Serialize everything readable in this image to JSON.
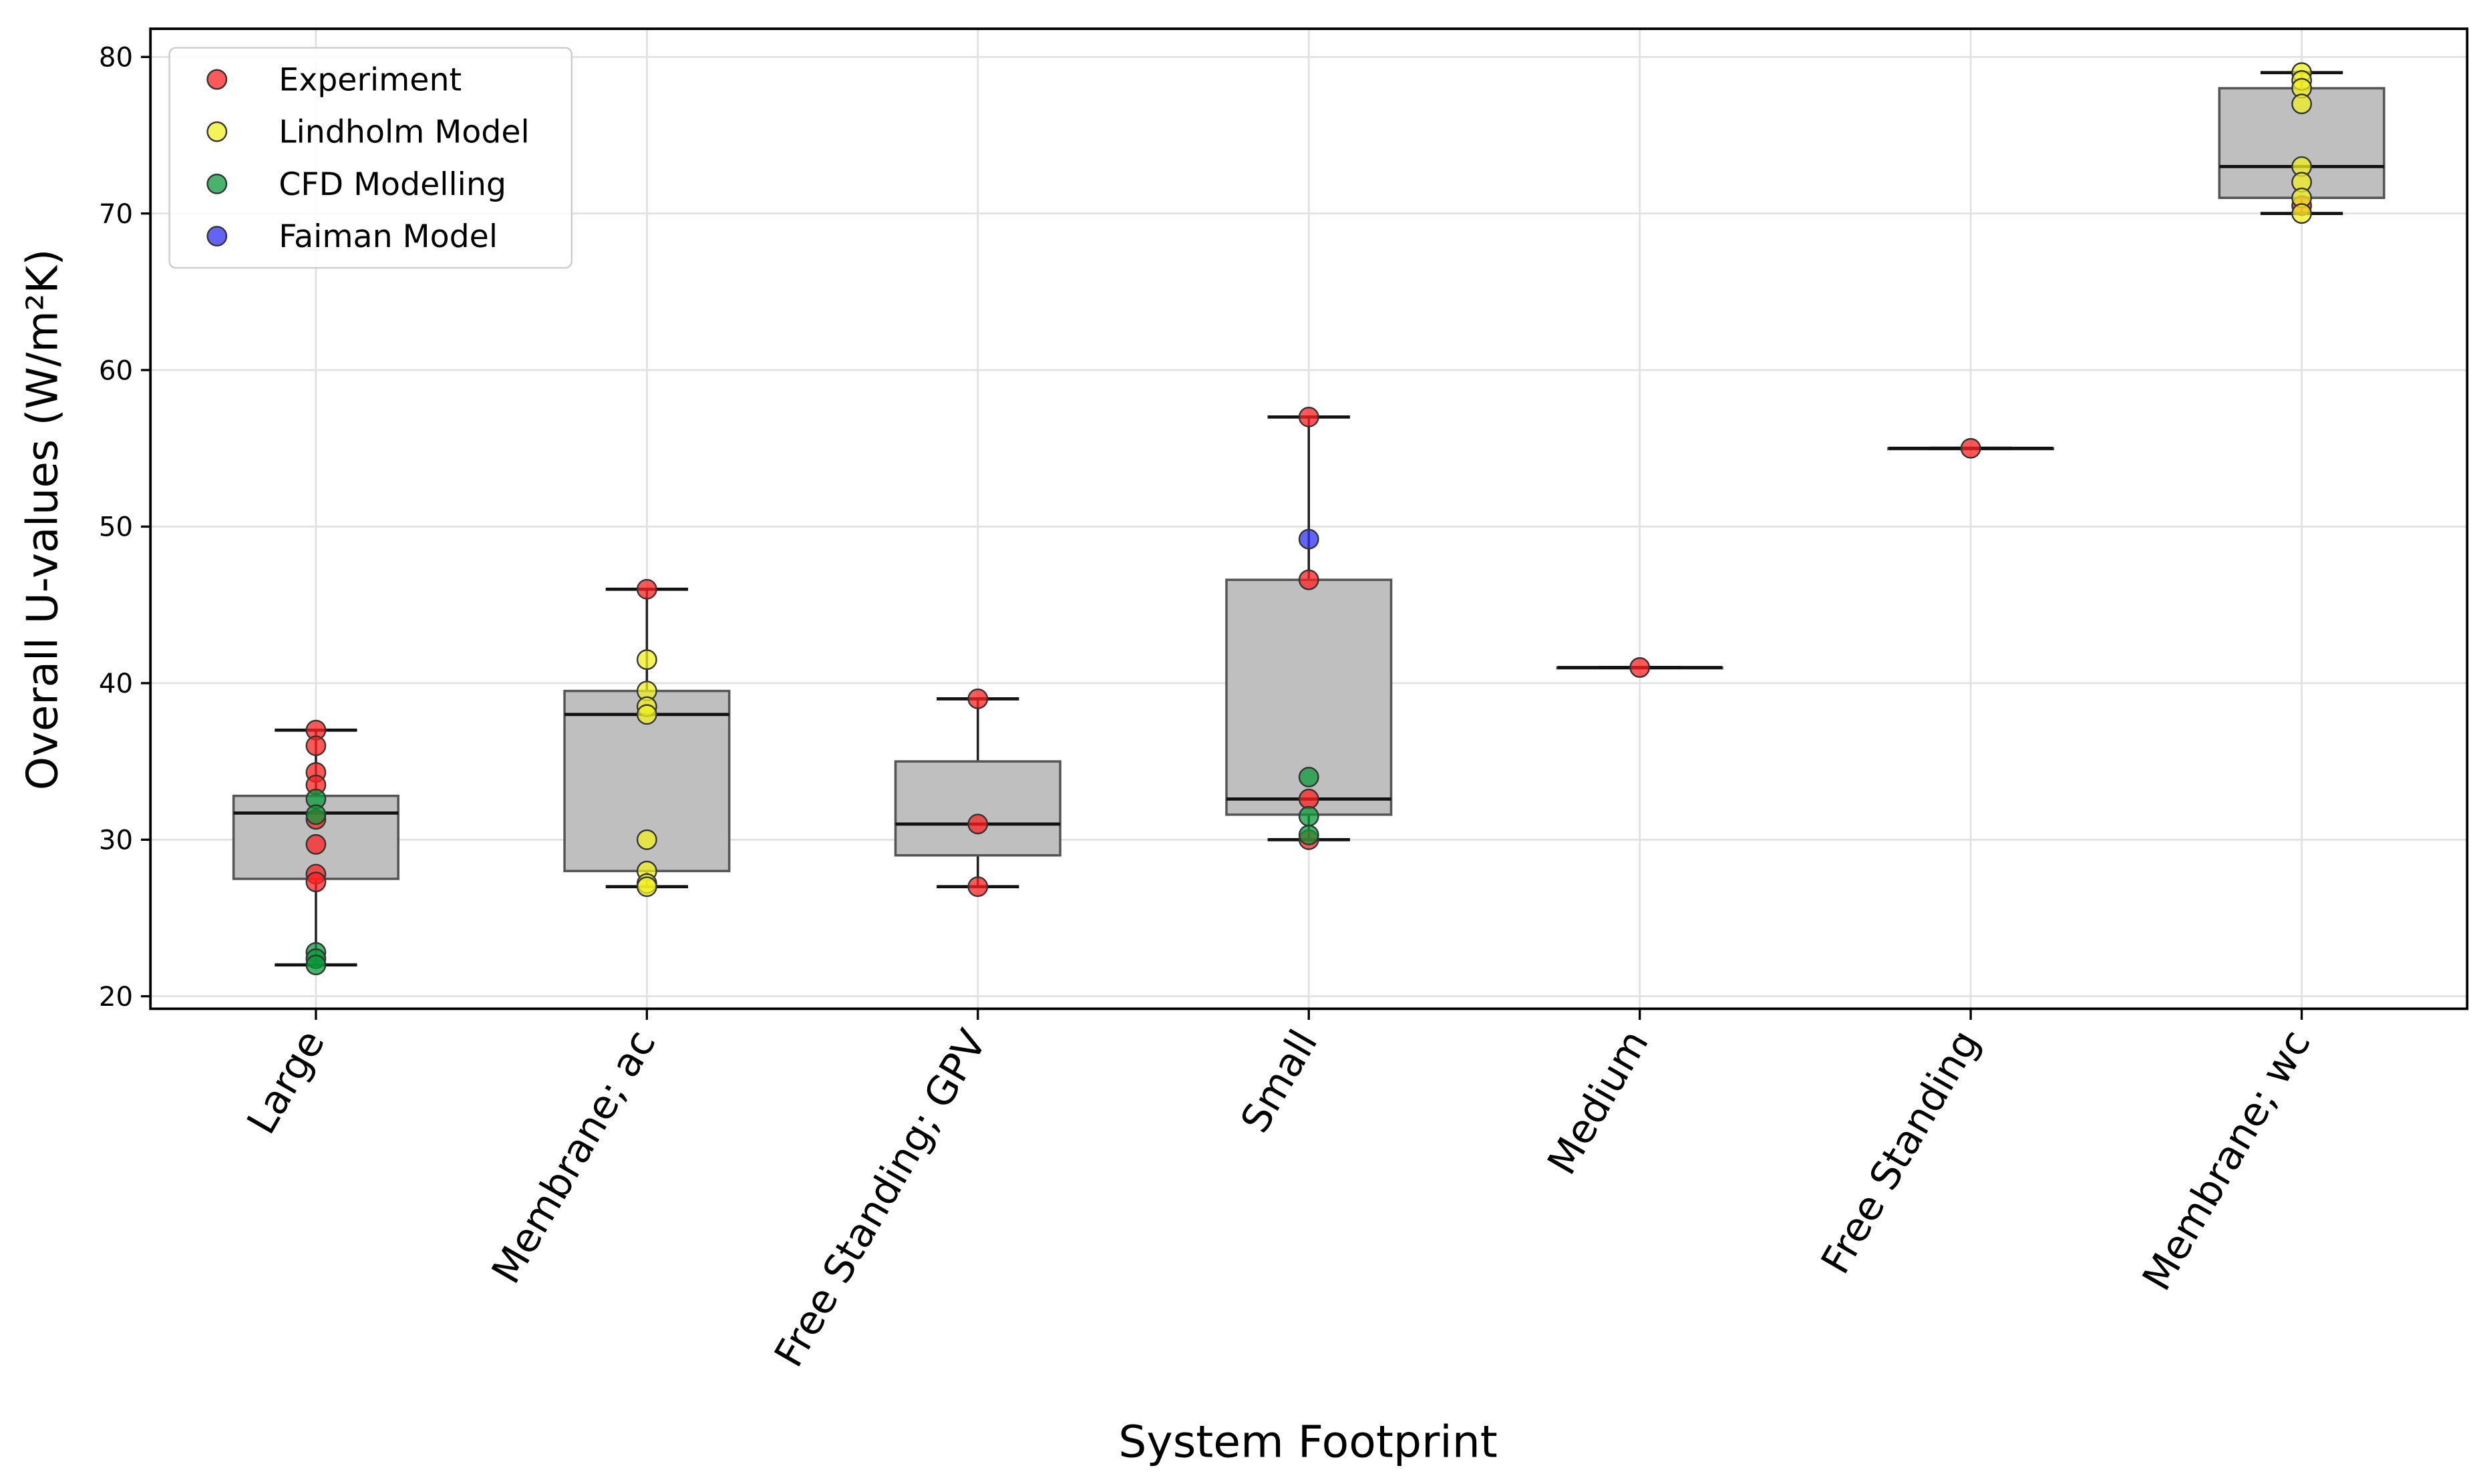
{
  "chart_data": {
    "type": "box",
    "title": "",
    "xlabel": "System Footprint",
    "ylabel": "Overall U-values (W/m²K)",
    "ylim": [
      19.2,
      81.8
    ],
    "yticks": [
      20,
      30,
      40,
      50,
      60,
      70,
      80
    ],
    "grid": true,
    "legend_position": "top-left",
    "categories": [
      "Large",
      "Membrane; ac",
      "Free Standing; GPV",
      "Small",
      "Medium",
      "Free Standing",
      "Membrane; wc"
    ],
    "boxes": [
      {
        "q1": 27.5,
        "median": 31.7,
        "q3": 32.8,
        "whisker_low": 22,
        "whisker_high": 37
      },
      {
        "q1": 28,
        "median": 38,
        "q3": 39.5,
        "whisker_low": 27,
        "whisker_high": 46
      },
      {
        "q1": 29,
        "median": 31,
        "q3": 35,
        "whisker_low": 27,
        "whisker_high": 39
      },
      {
        "q1": 31.6,
        "median": 32.6,
        "q3": 46.6,
        "whisker_low": 30,
        "whisker_high": 57
      },
      {
        "q1": 41,
        "median": 41,
        "q3": 41,
        "whisker_low": 41,
        "whisker_high": 41
      },
      {
        "q1": 55,
        "median": 55,
        "q3": 55,
        "whisker_low": 55,
        "whisker_high": 55
      },
      {
        "q1": 71,
        "median": 73,
        "q3": 78,
        "whisker_low": 70,
        "whisker_high": 79
      }
    ],
    "series": [
      {
        "name": "Experiment",
        "color": "#ff2020",
        "points": [
          [
            0,
            37
          ],
          [
            0,
            36
          ],
          [
            0,
            34.3
          ],
          [
            0,
            33.5
          ],
          [
            0,
            31.3
          ],
          [
            0,
            29.7
          ],
          [
            0,
            27.8
          ],
          [
            0,
            27.3
          ],
          [
            1,
            46
          ],
          [
            2,
            39
          ],
          [
            2,
            31
          ],
          [
            2,
            27
          ],
          [
            3,
            57
          ],
          [
            3,
            46.6
          ],
          [
            3,
            32.6
          ],
          [
            3,
            30
          ],
          [
            4,
            41
          ],
          [
            5,
            55
          ],
          [
            6,
            70.5
          ]
        ]
      },
      {
        "name": "Lindholm Model",
        "color": "#f0f020",
        "points": [
          [
            1,
            41.5
          ],
          [
            1,
            39.5
          ],
          [
            1,
            38.5
          ],
          [
            1,
            38
          ],
          [
            1,
            30
          ],
          [
            1,
            28
          ],
          [
            1,
            27.2
          ],
          [
            1,
            27
          ],
          [
            6,
            79
          ],
          [
            6,
            78.5
          ],
          [
            6,
            78
          ],
          [
            6,
            77
          ],
          [
            6,
            73
          ],
          [
            6,
            72
          ],
          [
            6,
            71
          ],
          [
            6,
            70
          ]
        ]
      },
      {
        "name": "CFD Modelling",
        "color": "#0a9a3a",
        "points": [
          [
            0,
            32.6
          ],
          [
            0,
            31.6
          ],
          [
            0,
            22.8
          ],
          [
            0,
            22.4
          ],
          [
            0,
            22
          ],
          [
            3,
            34
          ],
          [
            3,
            31.5
          ],
          [
            3,
            30.3
          ]
        ]
      },
      {
        "name": "Faiman Model",
        "color": "#3030f0",
        "points": [
          [
            3,
            49.2
          ]
        ]
      }
    ]
  }
}
